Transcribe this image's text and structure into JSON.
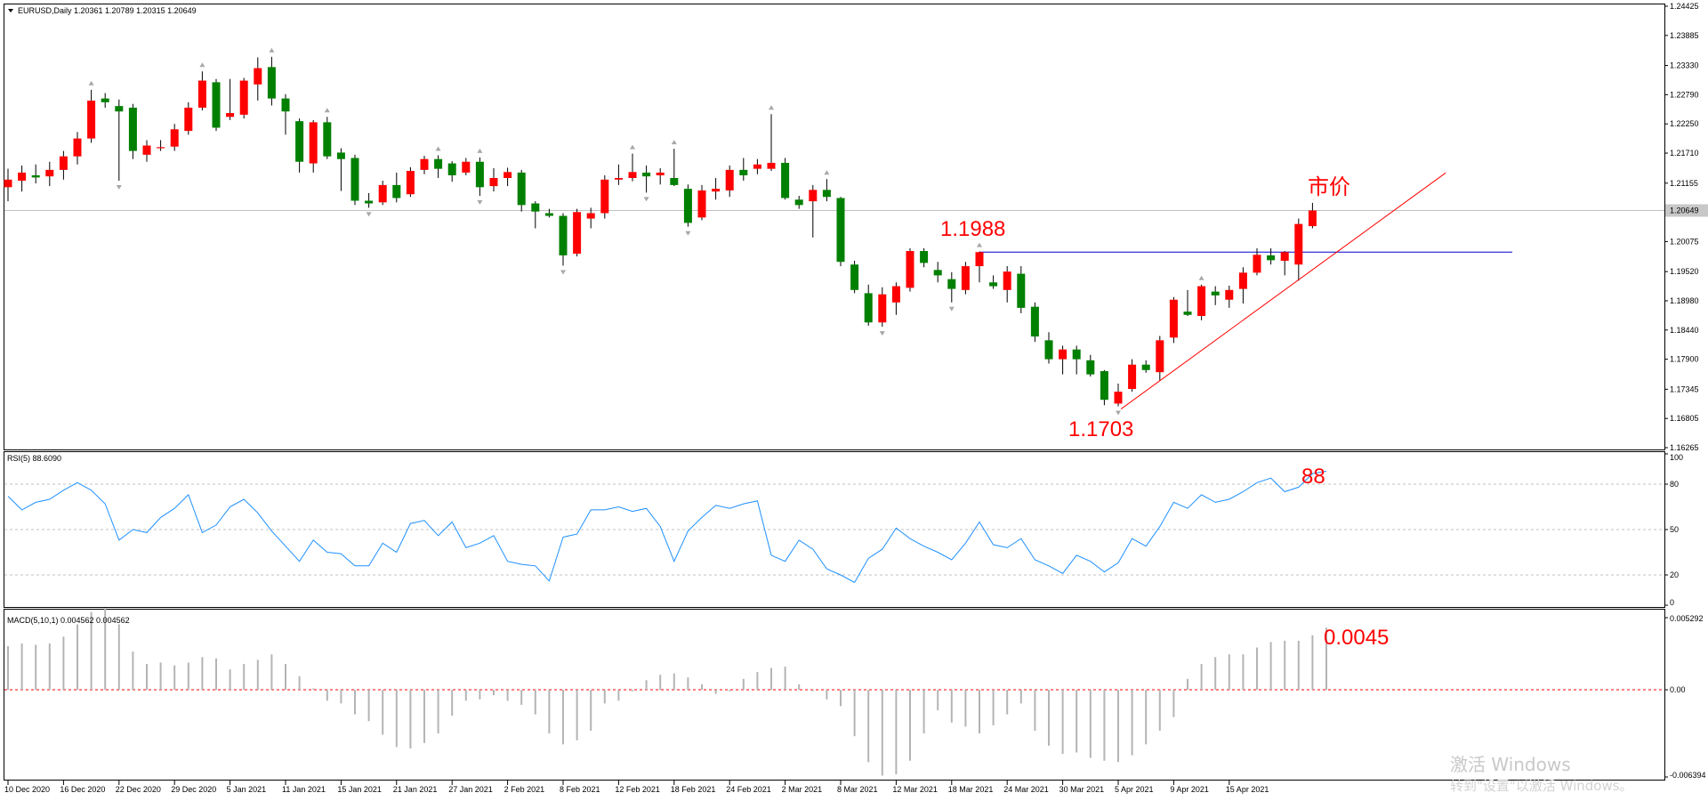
{
  "main_panel": {
    "header": "EURUSD,Daily  1.20361 1.20789 1.20315 1.20649",
    "price_axis_labels": [
      "1.24425",
      "1.23885",
      "1.23330",
      "1.22790",
      "1.22250",
      "1.21710",
      "1.21155",
      "1.20075",
      "1.19520",
      "1.18980",
      "1.18440",
      "1.17900",
      "1.17345",
      "1.16805",
      "1.16265"
    ],
    "current_price_label": "1.20649",
    "annotations": {
      "high": "1.1988",
      "low": "1.1703",
      "market": "市价"
    }
  },
  "rsi_panel": {
    "header": "RSI(5) 88.6090",
    "axis_labels": [
      "100",
      "80",
      "50",
      "20",
      "0"
    ],
    "annotation": "88"
  },
  "macd_panel": {
    "header": "MACD(5,10,1) 0.004562 0.004562",
    "axis_labels": [
      "0.005292",
      "0.00",
      "-0.006394"
    ],
    "annotation": "0.0045"
  },
  "x_axis_labels": [
    "10 Dec 2020",
    "16 Dec 2020",
    "22 Dec 2020",
    "29 Dec 2020",
    "5 Jan 2021",
    "11 Jan 2021",
    "15 Jan 2021",
    "21 Jan 2021",
    "27 Jan 2021",
    "2 Feb 2021",
    "8 Feb 2021",
    "12 Feb 2021",
    "18 Feb 2021",
    "24 Feb 2021",
    "2 Mar 2021",
    "8 Mar 2021",
    "12 Mar 2021",
    "18 Mar 2021",
    "24 Mar 2021",
    "30 Mar 2021",
    "5 Apr 2021",
    "9 Apr 2021",
    "15 Apr 2021"
  ],
  "watermark": {
    "line1": "激活 Windows",
    "line2": "转到\"设置\"以激活 Windows。"
  },
  "colors": {
    "bull": "#ff0000",
    "bear": "#008000",
    "rsi": "#1e90ff",
    "level": "#0000cd",
    "trend": "#ff0000",
    "annotation": "#ff0000"
  },
  "chart_data": {
    "type": "candlestick",
    "symbol": "EURUSD",
    "timeframe": "Daily",
    "ohlc": [
      {
        "o": 1.2108,
        "h": 1.2142,
        "l": 1.2082,
        "c": 1.2122
      },
      {
        "o": 1.212,
        "h": 1.2148,
        "l": 1.21,
        "c": 1.2135
      },
      {
        "o": 1.213,
        "h": 1.215,
        "l": 1.2115,
        "c": 1.2126
      },
      {
        "o": 1.2128,
        "h": 1.2155,
        "l": 1.211,
        "c": 1.214
      },
      {
        "o": 1.214,
        "h": 1.2175,
        "l": 1.2122,
        "c": 1.2165
      },
      {
        "o": 1.2165,
        "h": 1.221,
        "l": 1.215,
        "c": 1.2198
      },
      {
        "o": 1.2198,
        "h": 1.2288,
        "l": 1.219,
        "c": 1.2268
      },
      {
        "o": 1.2272,
        "h": 1.2282,
        "l": 1.2255,
        "c": 1.2265
      },
      {
        "o": 1.2258,
        "h": 1.227,
        "l": 1.212,
        "c": 1.2248
      },
      {
        "o": 1.2255,
        "h": 1.2262,
        "l": 1.216,
        "c": 1.2175
      },
      {
        "o": 1.2168,
        "h": 1.2195,
        "l": 1.2155,
        "c": 1.2185
      },
      {
        "o": 1.218,
        "h": 1.2195,
        "l": 1.2175,
        "c": 1.2182
      },
      {
        "o": 1.2183,
        "h": 1.2225,
        "l": 1.2175,
        "c": 1.2215
      },
      {
        "o": 1.2212,
        "h": 1.2265,
        "l": 1.2205,
        "c": 1.2255
      },
      {
        "o": 1.2255,
        "h": 1.2322,
        "l": 1.225,
        "c": 1.2305
      },
      {
        "o": 1.2302,
        "h": 1.2308,
        "l": 1.2212,
        "c": 1.2218
      },
      {
        "o": 1.2238,
        "h": 1.2308,
        "l": 1.2232,
        "c": 1.2245
      },
      {
        "o": 1.2242,
        "h": 1.231,
        "l": 1.2235,
        "c": 1.2305
      },
      {
        "o": 1.2298,
        "h": 1.2348,
        "l": 1.2268,
        "c": 1.2328
      },
      {
        "o": 1.233,
        "h": 1.2349,
        "l": 1.2259,
        "c": 1.2272
      },
      {
        "o": 1.2272,
        "h": 1.228,
        "l": 1.2205,
        "c": 1.2248
      },
      {
        "o": 1.223,
        "h": 1.2235,
        "l": 1.2135,
        "c": 1.2155
      },
      {
        "o": 1.2152,
        "h": 1.2232,
        "l": 1.2135,
        "c": 1.2228
      },
      {
        "o": 1.2228,
        "h": 1.2238,
        "l": 1.216,
        "c": 1.2165
      },
      {
        "o": 1.2172,
        "h": 1.218,
        "l": 1.2101,
        "c": 1.216
      },
      {
        "o": 1.2162,
        "h": 1.2168,
        "l": 1.2075,
        "c": 1.2083
      },
      {
        "o": 1.2083,
        "h": 1.2097,
        "l": 1.207,
        "c": 1.2078
      },
      {
        "o": 1.208,
        "h": 1.212,
        "l": 1.2075,
        "c": 1.2112
      },
      {
        "o": 1.2112,
        "h": 1.2135,
        "l": 1.208,
        "c": 1.2088
      },
      {
        "o": 1.2095,
        "h": 1.2145,
        "l": 1.209,
        "c": 1.2138
      },
      {
        "o": 1.214,
        "h": 1.2166,
        "l": 1.2132,
        "c": 1.216
      },
      {
        "o": 1.216,
        "h": 1.2167,
        "l": 1.2125,
        "c": 1.2142
      },
      {
        "o": 1.2152,
        "h": 1.2156,
        "l": 1.2118,
        "c": 1.213
      },
      {
        "o": 1.2135,
        "h": 1.2162,
        "l": 1.213,
        "c": 1.2155
      },
      {
        "o": 1.2155,
        "h": 1.2163,
        "l": 1.2092,
        "c": 1.2108
      },
      {
        "o": 1.211,
        "h": 1.2143,
        "l": 1.21,
        "c": 1.2125
      },
      {
        "o": 1.2125,
        "h": 1.2144,
        "l": 1.211,
        "c": 1.2136
      },
      {
        "o": 1.2135,
        "h": 1.214,
        "l": 1.2063,
        "c": 1.2075
      },
      {
        "o": 1.2078,
        "h": 1.2082,
        "l": 1.2032,
        "c": 1.2063
      },
      {
        "o": 1.206,
        "h": 1.2068,
        "l": 1.2052,
        "c": 1.2055
      },
      {
        "o": 1.2055,
        "h": 1.206,
        "l": 1.1963,
        "c": 1.1982
      },
      {
        "o": 1.1985,
        "h": 1.2068,
        "l": 1.198,
        "c": 1.2062
      },
      {
        "o": 1.205,
        "h": 1.207,
        "l": 1.2032,
        "c": 1.206
      },
      {
        "o": 1.206,
        "h": 1.213,
        "l": 1.205,
        "c": 1.2122
      },
      {
        "o": 1.2122,
        "h": 1.215,
        "l": 1.2112,
        "c": 1.2125
      },
      {
        "o": 1.2125,
        "h": 1.217,
        "l": 1.2119,
        "c": 1.2136
      },
      {
        "o": 1.2135,
        "h": 1.2148,
        "l": 1.2098,
        "c": 1.2128
      },
      {
        "o": 1.213,
        "h": 1.2143,
        "l": 1.2113,
        "c": 1.2135
      },
      {
        "o": 1.2125,
        "h": 1.2179,
        "l": 1.211,
        "c": 1.2112
      },
      {
        "o": 1.2105,
        "h": 1.2113,
        "l": 1.2035,
        "c": 1.2042
      },
      {
        "o": 1.2052,
        "h": 1.2112,
        "l": 1.2047,
        "c": 1.2102
      },
      {
        "o": 1.21,
        "h": 1.2125,
        "l": 1.2085,
        "c": 1.2105
      },
      {
        "o": 1.2102,
        "h": 1.2148,
        "l": 1.209,
        "c": 1.214
      },
      {
        "o": 1.214,
        "h": 1.2162,
        "l": 1.212,
        "c": 1.213
      },
      {
        "o": 1.2142,
        "h": 1.216,
        "l": 1.2132,
        "c": 1.215
      },
      {
        "o": 1.2142,
        "h": 1.2243,
        "l": 1.2138,
        "c": 1.2153
      },
      {
        "o": 1.2153,
        "h": 1.2162,
        "l": 1.2085,
        "c": 1.2088
      },
      {
        "o": 1.2085,
        "h": 1.2092,
        "l": 1.2068,
        "c": 1.2075
      },
      {
        "o": 1.2082,
        "h": 1.2112,
        "l": 1.2015,
        "c": 1.2103
      },
      {
        "o": 1.2103,
        "h": 1.2123,
        "l": 1.2082,
        "c": 1.209
      },
      {
        "o": 1.2088,
        "h": 1.209,
        "l": 1.1962,
        "c": 1.197
      },
      {
        "o": 1.1965,
        "h": 1.1972,
        "l": 1.1912,
        "c": 1.1918
      },
      {
        "o": 1.1912,
        "h": 1.1928,
        "l": 1.1852,
        "c": 1.1858
      },
      {
        "o": 1.1858,
        "h": 1.1923,
        "l": 1.185,
        "c": 1.191
      },
      {
        "o": 1.1895,
        "h": 1.1932,
        "l": 1.1872,
        "c": 1.1925
      },
      {
        "o": 1.1922,
        "h": 1.1995,
        "l": 1.1915,
        "c": 1.199
      },
      {
        "o": 1.199,
        "h": 1.1995,
        "l": 1.196,
        "c": 1.1968
      },
      {
        "o": 1.1955,
        "h": 1.197,
        "l": 1.1932,
        "c": 1.1945
      },
      {
        "o": 1.1938,
        "h": 1.1951,
        "l": 1.1895,
        "c": 1.192
      },
      {
        "o": 1.1918,
        "h": 1.197,
        "l": 1.191,
        "c": 1.1962
      },
      {
        "o": 1.1962,
        "h": 1.1989,
        "l": 1.1932,
        "c": 1.1988
      },
      {
        "o": 1.1932,
        "h": 1.1945,
        "l": 1.192,
        "c": 1.1925
      },
      {
        "o": 1.1918,
        "h": 1.1962,
        "l": 1.1895,
        "c": 1.1952
      },
      {
        "o": 1.1948,
        "h": 1.1962,
        "l": 1.1875,
        "c": 1.1885
      },
      {
        "o": 1.1887,
        "h": 1.1895,
        "l": 1.1822,
        "c": 1.1832
      },
      {
        "o": 1.1825,
        "h": 1.184,
        "l": 1.1782,
        "c": 1.179
      },
      {
        "o": 1.179,
        "h": 1.1815,
        "l": 1.1762,
        "c": 1.1808
      },
      {
        "o": 1.1808,
        "h": 1.1815,
        "l": 1.1762,
        "c": 1.179
      },
      {
        "o": 1.1788,
        "h": 1.1798,
        "l": 1.1758,
        "c": 1.1762
      },
      {
        "o": 1.1768,
        "h": 1.177,
        "l": 1.1705,
        "c": 1.1715
      },
      {
        "o": 1.1708,
        "h": 1.1745,
        "l": 1.1703,
        "c": 1.173
      },
      {
        "o": 1.1735,
        "h": 1.179,
        "l": 1.173,
        "c": 1.178
      },
      {
        "o": 1.178,
        "h": 1.1788,
        "l": 1.1765,
        "c": 1.177
      },
      {
        "o": 1.1766,
        "h": 1.1833,
        "l": 1.175,
        "c": 1.1825
      },
      {
        "o": 1.183,
        "h": 1.1905,
        "l": 1.182,
        "c": 1.19
      },
      {
        "o": 1.1878,
        "h": 1.1918,
        "l": 1.187,
        "c": 1.1872
      },
      {
        "o": 1.187,
        "h": 1.1928,
        "l": 1.1862,
        "c": 1.1925
      },
      {
        "o": 1.1915,
        "h": 1.1925,
        "l": 1.189,
        "c": 1.1908
      },
      {
        "o": 1.19,
        "h": 1.1926,
        "l": 1.1885,
        "c": 1.1918
      },
      {
        "o": 1.192,
        "h": 1.196,
        "l": 1.1893,
        "c": 1.195
      },
      {
        "o": 1.195,
        "h": 1.1995,
        "l": 1.1945,
        "c": 1.1983
      },
      {
        "o": 1.1982,
        "h": 1.1995,
        "l": 1.1965,
        "c": 1.1973
      },
      {
        "o": 1.1972,
        "h": 1.199,
        "l": 1.1945,
        "c": 1.1988
      },
      {
        "o": 1.1965,
        "h": 1.205,
        "l": 1.1935,
        "c": 1.204
      },
      {
        "o": 1.2036,
        "h": 1.2079,
        "l": 1.2032,
        "c": 1.2065
      }
    ],
    "rsi": {
      "name": "RSI(5)",
      "levels": [
        80,
        50,
        20
      ],
      "ylim": [
        0,
        100
      ],
      "values": [
        72,
        63,
        68,
        70,
        76,
        81,
        76,
        67,
        43,
        50,
        48,
        58,
        64,
        73,
        48,
        53,
        65,
        70,
        61,
        49,
        39,
        29,
        43,
        35,
        34,
        26,
        26,
        41,
        35,
        54,
        56,
        46,
        55,
        38,
        41,
        46,
        29,
        27,
        26,
        16,
        45,
        47,
        63,
        63,
        65,
        62,
        64,
        52,
        29,
        49,
        58,
        66,
        64,
        67,
        69,
        33,
        29,
        43,
        37,
        24,
        20,
        15,
        31,
        37,
        51,
        44,
        39,
        35,
        30,
        41,
        55,
        40,
        38,
        44,
        30,
        26,
        21,
        33,
        29,
        22,
        28,
        44,
        39,
        52,
        68,
        64,
        73,
        68,
        70,
        75,
        81,
        84,
        75,
        78,
        87,
        88.6
      ]
    },
    "macd": {
      "name": "MACD(5,10,1)",
      "ylim": [
        -0.006394,
        0.005292
      ],
      "values": [
        0.0032,
        0.0034,
        0.0033,
        0.0034,
        0.0039,
        0.0048,
        0.0057,
        0.006,
        0.0048,
        0.0028,
        0.0019,
        0.002,
        0.0018,
        0.002,
        0.0024,
        0.0023,
        0.0015,
        0.0019,
        0.0022,
        0.0026,
        0.0019,
        0.001,
        0.0001,
        -0.0008,
        -0.001,
        -0.0018,
        -0.0023,
        -0.0033,
        -0.0042,
        -0.0043,
        -0.0039,
        -0.0032,
        -0.0019,
        -0.0008,
        -0.0007,
        -0.0004,
        -0.0008,
        -0.0011,
        -0.0018,
        -0.0032,
        -0.004,
        -0.0037,
        -0.003,
        -0.001,
        -0.0008,
        -0.0001,
        0.0007,
        0.0011,
        0.0012,
        0.0009,
        0.0004,
        -0.0003,
        -0.0001,
        0.0008,
        0.0013,
        0.0016,
        0.0017,
        0.0004,
        -0.0001,
        -0.0007,
        -0.0012,
        -0.0034,
        -0.0053,
        -0.0063,
        -0.0062,
        -0.0052,
        -0.0032,
        -0.0015,
        -0.0024,
        -0.0027,
        -0.0032,
        -0.0026,
        -0.0018,
        -0.001,
        -0.003,
        -0.0041,
        -0.0047,
        -0.0046,
        -0.005,
        -0.0052,
        -0.0053,
        -0.0048,
        -0.004,
        -0.003,
        -0.002,
        0.0008,
        0.0019,
        0.0024,
        0.0026,
        0.0026,
        0.0031,
        0.0035,
        0.0036,
        0.0036,
        0.004,
        0.00456
      ]
    },
    "horizontal_line": 1.1988,
    "current_price": 1.20649,
    "ylim": [
      1.16265,
      1.24425
    ]
  }
}
